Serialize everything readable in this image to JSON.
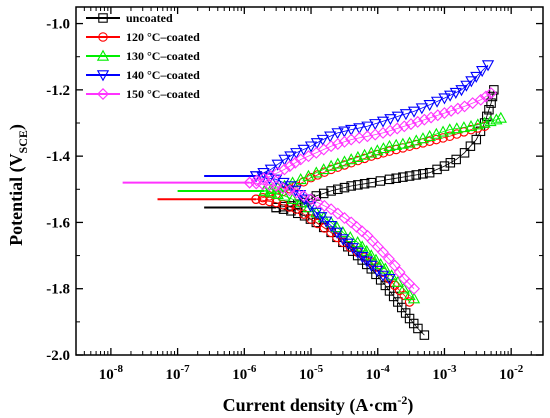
{
  "chart_data": {
    "type": "scatter",
    "xlabel": "Current density (A·cm",
    "xlabel_sup": "-2",
    "xlabel_end": ")",
    "ylabel": "Potential (V",
    "ylabel_sub": "SCE",
    "ylabel_end": ")",
    "x_scale": "log",
    "xlim": [
      3e-09,
      0.03
    ],
    "ylim": [
      -2.0,
      -0.95
    ],
    "x_ticks": [
      1e-08,
      1e-07,
      1e-06,
      1e-05,
      0.0001,
      0.001,
      0.01
    ],
    "x_tick_labels": [
      {
        "base": "10",
        "exp": "-8"
      },
      {
        "base": "10",
        "exp": "-7"
      },
      {
        "base": "10",
        "exp": "-6"
      },
      {
        "base": "10",
        "exp": "-5"
      },
      {
        "base": "10",
        "exp": "-4"
      },
      {
        "base": "10",
        "exp": "-3"
      },
      {
        "base": "10",
        "exp": "-2"
      }
    ],
    "y_ticks": [
      -2.0,
      -1.8,
      -1.6,
      -1.4,
      -1.2,
      -1.0
    ],
    "y_tick_labels": [
      "-2.0",
      "-1.8",
      "-1.6",
      "-1.4",
      "-1.2",
      "-1.0"
    ],
    "grid": false,
    "legend_position": "top-left",
    "series": [
      {
        "name": "uncoated",
        "color": "#000000",
        "marker": "square",
        "ecorr": -1.555,
        "icorr": 3e-06,
        "flat_start": 2.5e-07,
        "cathodic": [
          [
            3e-06,
            -1.555
          ],
          [
            5e-06,
            -1.565
          ],
          [
            8e-06,
            -1.58
          ],
          [
            1.2e-05,
            -1.6
          ],
          [
            2e-05,
            -1.63
          ],
          [
            3e-05,
            -1.66
          ],
          [
            5e-05,
            -1.7
          ],
          [
            8e-05,
            -1.74
          ],
          [
            0.00013,
            -1.79
          ],
          [
            0.0002,
            -1.84
          ],
          [
            0.0003,
            -1.89
          ],
          [
            0.0004,
            -1.92
          ],
          [
            0.0005,
            -1.94
          ]
        ],
        "anodic": [
          [
            3e-06,
            -1.555
          ],
          [
            5e-06,
            -1.55
          ],
          [
            8e-06,
            -1.54
          ],
          [
            1.2e-05,
            -1.52
          ],
          [
            2e-05,
            -1.505
          ],
          [
            4e-05,
            -1.49
          ],
          [
            8e-05,
            -1.48
          ],
          [
            0.00015,
            -1.47
          ],
          [
            0.0003,
            -1.46
          ],
          [
            0.0006,
            -1.45
          ],
          [
            0.001,
            -1.43
          ],
          [
            0.0015,
            -1.41
          ],
          [
            0.002,
            -1.39
          ],
          [
            0.003,
            -1.35
          ],
          [
            0.004,
            -1.3
          ],
          [
            0.005,
            -1.24
          ],
          [
            0.0055,
            -1.2
          ]
        ]
      },
      {
        "name": "120 °C–coated",
        "color": "#ff0000",
        "marker": "circle",
        "ecorr": -1.53,
        "icorr": 1.5e-06,
        "flat_start": 5e-08,
        "cathodic": [
          [
            1.5e-06,
            -1.53
          ],
          [
            3e-06,
            -1.54
          ],
          [
            6e-06,
            -1.56
          ],
          [
            1e-05,
            -1.59
          ],
          [
            2e-05,
            -1.63
          ],
          [
            3e-05,
            -1.66
          ],
          [
            5e-05,
            -1.69
          ],
          [
            8e-05,
            -1.72
          ],
          [
            0.00012,
            -1.75
          ],
          [
            0.00018,
            -1.79
          ],
          [
            0.00025,
            -1.82
          ],
          [
            0.0003,
            -1.84
          ]
        ],
        "anodic": [
          [
            1.5e-06,
            -1.53
          ],
          [
            3e-06,
            -1.515
          ],
          [
            6e-06,
            -1.49
          ],
          [
            1e-05,
            -1.465
          ],
          [
            2e-05,
            -1.44
          ],
          [
            4e-05,
            -1.42
          ],
          [
            8e-05,
            -1.4
          ],
          [
            0.00015,
            -1.385
          ],
          [
            0.0003,
            -1.37
          ],
          [
            0.0006,
            -1.355
          ],
          [
            0.0012,
            -1.34
          ],
          [
            0.0025,
            -1.32
          ],
          [
            0.004,
            -1.31
          ]
        ]
      },
      {
        "name": "130 °C–coated",
        "color": "#00ee00",
        "marker": "triangle-up",
        "ecorr": -1.505,
        "icorr": 2e-06,
        "flat_start": 1e-07,
        "cathodic": [
          [
            2e-06,
            -1.505
          ],
          [
            4e-06,
            -1.52
          ],
          [
            7e-06,
            -1.54
          ],
          [
            1.2e-05,
            -1.57
          ],
          [
            2e-05,
            -1.6
          ],
          [
            3e-05,
            -1.63
          ],
          [
            5e-05,
            -1.66
          ],
          [
            8e-05,
            -1.7
          ],
          [
            0.00013,
            -1.74
          ],
          [
            0.0002,
            -1.78
          ],
          [
            0.0003,
            -1.82
          ],
          [
            0.00035,
            -1.83
          ]
        ],
        "anodic": [
          [
            2e-06,
            -1.505
          ],
          [
            4e-06,
            -1.49
          ],
          [
            7e-06,
            -1.47
          ],
          [
            1.2e-05,
            -1.45
          ],
          [
            2e-05,
            -1.43
          ],
          [
            4e-05,
            -1.41
          ],
          [
            8e-05,
            -1.39
          ],
          [
            0.00015,
            -1.37
          ],
          [
            0.0003,
            -1.36
          ],
          [
            0.0006,
            -1.34
          ],
          [
            0.0012,
            -1.32
          ],
          [
            0.0025,
            -1.31
          ],
          [
            0.004,
            -1.3
          ],
          [
            0.006,
            -1.29
          ],
          [
            0.007,
            -1.285
          ]
        ]
      },
      {
        "name": "140 °C–coated",
        "color": "#0000ff",
        "marker": "triangle-down",
        "ecorr": -1.46,
        "icorr": 1.5e-06,
        "flat_start": 2.5e-07,
        "cathodic": [
          [
            1.5e-06,
            -1.46
          ],
          [
            3e-06,
            -1.47
          ],
          [
            5e-06,
            -1.49
          ],
          [
            8e-06,
            -1.53
          ],
          [
            1.2e-05,
            -1.57
          ],
          [
            2e-05,
            -1.61
          ],
          [
            3e-05,
            -1.65
          ],
          [
            5e-05,
            -1.69
          ],
          [
            8e-05,
            -1.73
          ],
          [
            0.00012,
            -1.76
          ],
          [
            0.00015,
            -1.77
          ]
        ],
        "anodic": [
          [
            1.5e-06,
            -1.46
          ],
          [
            2.5e-06,
            -1.44
          ],
          [
            4e-06,
            -1.41
          ],
          [
            6e-06,
            -1.39
          ],
          [
            1e-05,
            -1.37
          ],
          [
            1.5e-05,
            -1.35
          ],
          [
            2.5e-05,
            -1.33
          ],
          [
            4e-05,
            -1.32
          ],
          [
            7e-05,
            -1.31
          ],
          [
            0.00012,
            -1.295
          ],
          [
            0.0002,
            -1.28
          ],
          [
            0.00035,
            -1.265
          ],
          [
            0.0006,
            -1.245
          ],
          [
            0.001,
            -1.225
          ],
          [
            0.0018,
            -1.2
          ],
          [
            0.003,
            -1.16
          ],
          [
            0.0045,
            -1.125
          ]
        ]
      },
      {
        "name": "150 °C–coated",
        "color": "#ff33ff",
        "marker": "diamond",
        "ecorr": -1.48,
        "icorr": 1.2e-06,
        "flat_start": 1.5e-08,
        "cathodic": [
          [
            1.2e-06,
            -1.48
          ],
          [
            3e-06,
            -1.49
          ],
          [
            6e-06,
            -1.51
          ],
          [
            1e-05,
            -1.53
          ],
          [
            2e-05,
            -1.56
          ],
          [
            4e-05,
            -1.6
          ],
          [
            7e-05,
            -1.64
          ],
          [
            0.00012,
            -1.69
          ],
          [
            0.00018,
            -1.73
          ],
          [
            0.00025,
            -1.77
          ],
          [
            0.00035,
            -1.8
          ]
        ],
        "anodic": [
          [
            1.2e-06,
            -1.48
          ],
          [
            2.5e-06,
            -1.46
          ],
          [
            4e-06,
            -1.44
          ],
          [
            7e-06,
            -1.41
          ],
          [
            1.2e-05,
            -1.39
          ],
          [
            2e-05,
            -1.37
          ],
          [
            4e-05,
            -1.35
          ],
          [
            7e-05,
            -1.34
          ],
          [
            0.00012,
            -1.33
          ],
          [
            0.00025,
            -1.31
          ],
          [
            0.0005,
            -1.29
          ],
          [
            0.001,
            -1.27
          ],
          [
            0.002,
            -1.25
          ],
          [
            0.0035,
            -1.23
          ],
          [
            0.005,
            -1.21
          ]
        ]
      }
    ]
  }
}
